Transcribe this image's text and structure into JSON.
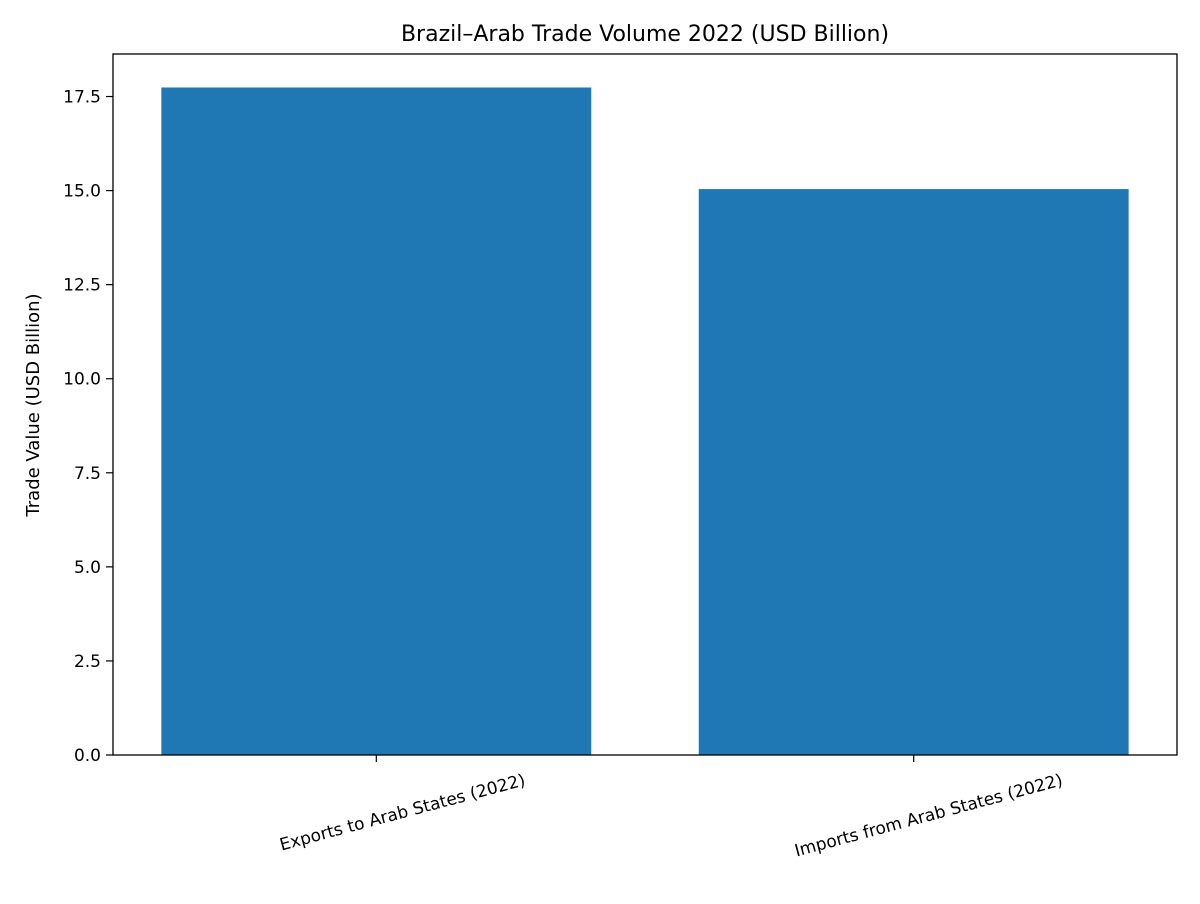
{
  "chart_data": {
    "type": "bar",
    "title": "Brazil–Arab Trade Volume 2022 (USD Billion)",
    "xlabel": "",
    "ylabel": "Trade Value (USD Billion)",
    "categories": [
      "Exports to Arab States (2022)",
      "Imports from Arab States (2022)"
    ],
    "values": [
      17.74,
      15.04
    ],
    "ylim": [
      0,
      18.63
    ],
    "yticks": [
      "0.0",
      "2.5",
      "5.0",
      "7.5",
      "10.0",
      "12.5",
      "15.0",
      "17.5"
    ],
    "grid": false,
    "legend": "none",
    "bar_color": "#1f77b4"
  }
}
